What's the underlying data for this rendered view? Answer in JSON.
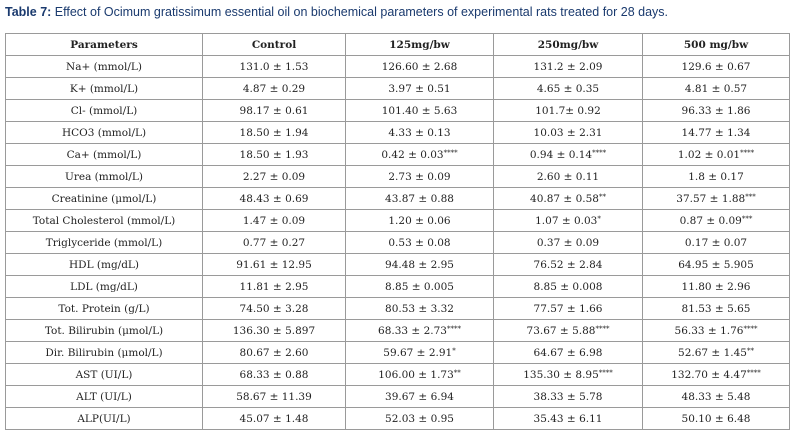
{
  "caption": {
    "label": "Table 7:",
    "text": " Effect of Ocimum gratissimum essential oil on biochemical parameters of experimental rats treated for 28 days."
  },
  "table": {
    "headers": [
      "Parameters",
      "Control",
      "125mg/bw",
      "250mg/bw",
      "500 mg/bw"
    ],
    "rows": [
      {
        "param": "Na+ (mmol/L)",
        "cells": [
          [
            "131.0 ± 1.53",
            ""
          ],
          [
            "126.60 ± 2.68",
            ""
          ],
          [
            "131.2 ± 2.09",
            ""
          ],
          [
            "129.6 ± 0.67",
            ""
          ]
        ]
      },
      {
        "param": "K+ (mmol/L)",
        "cells": [
          [
            "4.87 ± 0.29",
            ""
          ],
          [
            "3.97 ± 0.51",
            ""
          ],
          [
            "4.65 ± 0.35",
            ""
          ],
          [
            "4.81 ± 0.57",
            ""
          ]
        ]
      },
      {
        "param": "Cl- (mmol/L)",
        "cells": [
          [
            "98.17 ± 0.61",
            ""
          ],
          [
            "101.40 ± 5.63",
            ""
          ],
          [
            "101.7± 0.92",
            ""
          ],
          [
            "96.33 ± 1.86",
            ""
          ]
        ]
      },
      {
        "param": "HCO3 (mmol/L)",
        "cells": [
          [
            "18.50 ± 1.94",
            ""
          ],
          [
            "4.33 ± 0.13",
            ""
          ],
          [
            "10.03 ± 2.31",
            ""
          ],
          [
            "14.77 ± 1.34",
            ""
          ]
        ]
      },
      {
        "param": "Ca+ (mmol/L)",
        "cells": [
          [
            "18.50 ± 1.93",
            ""
          ],
          [
            "0.42 ± 0.03",
            "****"
          ],
          [
            "0.94 ± 0.14",
            "****"
          ],
          [
            "1.02 ± 0.01",
            "****"
          ]
        ]
      },
      {
        "param": "Urea (mmol/L)",
        "cells": [
          [
            "2.27 ± 0.09",
            ""
          ],
          [
            "2.73 ± 0.09",
            ""
          ],
          [
            "2.60 ± 0.11",
            ""
          ],
          [
            "1.8 ± 0.17",
            ""
          ]
        ]
      },
      {
        "param": "Creatinine (μmol/L)",
        "cells": [
          [
            "48.43 ± 0.69",
            ""
          ],
          [
            "43.87 ± 0.88",
            ""
          ],
          [
            "40.87 ± 0.58",
            "**"
          ],
          [
            "37.57 ± 1.88",
            "***"
          ]
        ]
      },
      {
        "param": "Total Cholesterol (mmol/L)",
        "cells": [
          [
            "1.47 ± 0.09",
            ""
          ],
          [
            "1.20 ± 0.06",
            ""
          ],
          [
            "1.07 ± 0.03",
            "*"
          ],
          [
            "0.87 ± 0.09",
            "***"
          ]
        ]
      },
      {
        "param": "Triglyceride (mmol/L)",
        "cells": [
          [
            "0.77 ± 0.27",
            ""
          ],
          [
            "0.53 ± 0.08",
            ""
          ],
          [
            "0.37 ± 0.09",
            ""
          ],
          [
            "0.17 ± 0.07",
            ""
          ]
        ]
      },
      {
        "param": "HDL (mg/dL)",
        "cells": [
          [
            "91.61 ± 12.95",
            ""
          ],
          [
            "94.48 ± 2.95",
            ""
          ],
          [
            "76.52 ± 2.84",
            ""
          ],
          [
            "64.95 ± 5.905",
            ""
          ]
        ]
      },
      {
        "param": "LDL (mg/dL)",
        "cells": [
          [
            "11.81 ± 2.95",
            ""
          ],
          [
            "8.85 ± 0.005",
            ""
          ],
          [
            "8.85 ± 0.008",
            ""
          ],
          [
            "11.80 ± 2.96",
            ""
          ]
        ]
      },
      {
        "param": "Tot. Protein (g/L)",
        "cells": [
          [
            "74.50 ± 3.28",
            ""
          ],
          [
            "80.53 ± 3.32",
            ""
          ],
          [
            "77.57 ± 1.66",
            ""
          ],
          [
            "81.53 ± 5.65",
            ""
          ]
        ]
      },
      {
        "param": "Tot. Bilirubin (μmol/L)",
        "cells": [
          [
            "136.30 ± 5.897",
            ""
          ],
          [
            "68.33 ± 2.73",
            "****"
          ],
          [
            "73.67 ± 5.88",
            "****"
          ],
          [
            "56.33 ± 1.76",
            "****"
          ]
        ]
      },
      {
        "param": "Dir. Bilirubin (μmol/L)",
        "cells": [
          [
            "80.67 ± 2.60",
            ""
          ],
          [
            "59.67 ± 2.91",
            "*"
          ],
          [
            "64.67 ± 6.98",
            ""
          ],
          [
            "52.67 ± 1.45",
            "**"
          ]
        ]
      },
      {
        "param": "AST (UI/L)",
        "cells": [
          [
            "68.33 ± 0.88",
            ""
          ],
          [
            "106.00 ± 1.73",
            "**"
          ],
          [
            "135.30 ± 8.95",
            "****"
          ],
          [
            "132.70 ± 4.47",
            "****"
          ]
        ]
      },
      {
        "param": "ALT (UI/L)",
        "cells": [
          [
            "58.67 ± 11.39",
            ""
          ],
          [
            "39.67 ± 6.94",
            ""
          ],
          [
            "38.33 ± 5.78",
            ""
          ],
          [
            "48.33 ± 5.48",
            ""
          ]
        ]
      },
      {
        "param": "ALP(UI/L)",
        "cells": [
          [
            "45.07 ± 1.48",
            ""
          ],
          [
            "52.03 ± 0.95",
            ""
          ],
          [
            "35.43 ± 6.11",
            ""
          ],
          [
            "50.10 ± 6.48",
            ""
          ]
        ]
      }
    ]
  }
}
